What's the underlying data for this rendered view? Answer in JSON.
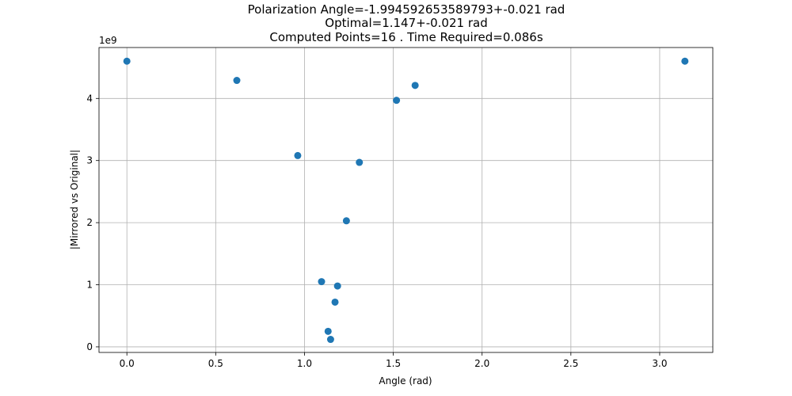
{
  "chart_data": {
    "type": "scatter",
    "title_lines": [
      "Polarization Angle=-1.994592653589793+-0.021 rad",
      "Optimal=1.147+-0.021 rad",
      "Computed Points=16 . Time Required=0.086s"
    ],
    "xlabel": "Angle (rad)",
    "ylabel": "|Mirrored vs Original|",
    "y_multiplier_label": "1e9",
    "xlim": [
      -0.157,
      3.299
    ],
    "ylim": [
      -0.09,
      4.82
    ],
    "x_ticks": [
      0.0,
      0.5,
      1.0,
      1.5,
      2.0,
      2.5,
      3.0
    ],
    "x_tick_labels": [
      "0.0",
      "0.5",
      "1.0",
      "1.5",
      "2.0",
      "2.5",
      "3.0"
    ],
    "y_ticks": [
      0,
      1,
      2,
      3,
      4
    ],
    "y_tick_labels": [
      "0",
      "1",
      "2",
      "3",
      "4"
    ],
    "grid": true,
    "marker_color": "#1f77b4",
    "x": [
      0.0,
      0.619,
      0.962,
      1.096,
      1.133,
      1.147,
      1.172,
      1.186,
      1.236,
      1.309,
      1.518,
      1.623,
      3.142
    ],
    "y": [
      4.6,
      4.29,
      3.08,
      1.05,
      0.25,
      0.12,
      0.72,
      0.98,
      2.03,
      2.97,
      3.97,
      4.21,
      4.6
    ]
  }
}
